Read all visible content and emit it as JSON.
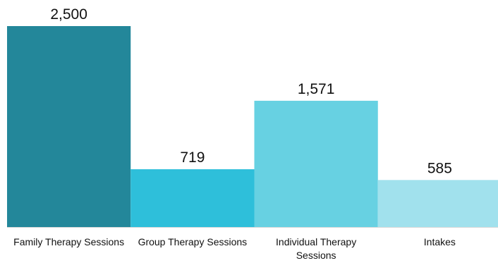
{
  "chart_data": {
    "type": "bar",
    "categories": [
      [
        "Family Therapy Sessions"
      ],
      [
        "Group Therapy Sessions"
      ],
      [
        "Individual Therapy",
        "Sessions"
      ],
      [
        "Intakes"
      ]
    ],
    "values": [
      2500,
      719,
      1571,
      585
    ],
    "value_labels": [
      "2,500",
      "719",
      "1,571",
      "585"
    ],
    "colors": [
      "#23879a",
      "#2ebfda",
      "#67d1e2",
      "#a1e1ed"
    ],
    "axis_color": "#d9d9d9",
    "ylim": [
      0,
      2500
    ],
    "title": "",
    "xlabel": "",
    "ylabel": "",
    "grid": false,
    "legend": "none"
  }
}
